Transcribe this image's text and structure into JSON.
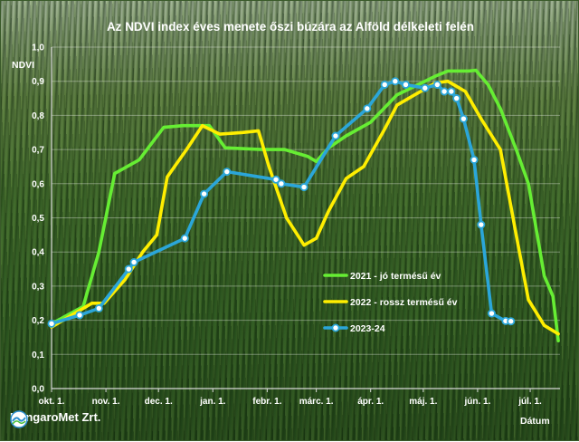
{
  "chart_data": {
    "type": "line",
    "title": "Az NDVI index éves menete őszi búzára az Alföld délkeleti felén",
    "ylabel": "NDVI",
    "xlabel": "Dátum",
    "ylim": [
      0,
      1
    ],
    "xlim": [
      0,
      290
    ],
    "y_ticks": [
      "0,0",
      "0,1",
      "0,2",
      "0,3",
      "0,4",
      "0,5",
      "0,6",
      "0,7",
      "0,8",
      "0,9",
      "1,0"
    ],
    "x_ticks": [
      {
        "label": "okt. 1.",
        "day": 0
      },
      {
        "label": "nov. 1.",
        "day": 31
      },
      {
        "label": "dec. 1.",
        "day": 61
      },
      {
        "label": "jan. 1.",
        "day": 92
      },
      {
        "label": "febr. 1.",
        "day": 123
      },
      {
        "label": "márc. 1.",
        "day": 151
      },
      {
        "label": "ápr. 1.",
        "day": 182
      },
      {
        "label": "máj. 1.",
        "day": 212
      },
      {
        "label": "jún. 1.",
        "day": 243
      },
      {
        "label": "júl. 1.",
        "day": 273
      }
    ],
    "grid": "horizontal",
    "legend_position": "right",
    "series": [
      {
        "name": "2021 - jó termésű év",
        "color": "#66ee33",
        "markers": false,
        "points": [
          [
            0,
            0.19
          ],
          [
            18,
            0.24
          ],
          [
            27,
            0.4
          ],
          [
            36,
            0.63
          ],
          [
            50,
            0.67
          ],
          [
            64,
            0.765
          ],
          [
            75,
            0.77
          ],
          [
            90,
            0.77
          ],
          [
            99,
            0.705
          ],
          [
            120,
            0.7
          ],
          [
            133,
            0.7
          ],
          [
            146,
            0.68
          ],
          [
            151,
            0.665
          ],
          [
            158,
            0.705
          ],
          [
            168,
            0.74
          ],
          [
            182,
            0.78
          ],
          [
            197,
            0.86
          ],
          [
            207,
            0.885
          ],
          [
            219,
            0.915
          ],
          [
            226,
            0.93
          ],
          [
            238,
            0.93
          ],
          [
            242,
            0.932
          ],
          [
            249,
            0.89
          ],
          [
            256,
            0.82
          ],
          [
            265,
            0.7
          ],
          [
            272,
            0.6
          ],
          [
            281,
            0.33
          ],
          [
            286,
            0.27
          ],
          [
            289,
            0.14
          ]
        ]
      },
      {
        "name": "2022 - rossz termésű év",
        "color": "#ffee00",
        "markers": false,
        "points": [
          [
            0,
            0.18
          ],
          [
            23,
            0.25
          ],
          [
            30,
            0.25
          ],
          [
            42,
            0.32
          ],
          [
            52,
            0.4
          ],
          [
            60,
            0.45
          ],
          [
            66,
            0.62
          ],
          [
            77,
            0.7
          ],
          [
            86,
            0.77
          ],
          [
            96,
            0.745
          ],
          [
            109,
            0.75
          ],
          [
            118,
            0.755
          ],
          [
            124,
            0.65
          ],
          [
            134,
            0.5
          ],
          [
            144,
            0.42
          ],
          [
            151,
            0.44
          ],
          [
            158,
            0.52
          ],
          [
            168,
            0.615
          ],
          [
            178,
            0.65
          ],
          [
            190,
            0.76
          ],
          [
            197,
            0.83
          ],
          [
            207,
            0.86
          ],
          [
            219,
            0.895
          ],
          [
            226,
            0.9
          ],
          [
            236,
            0.87
          ],
          [
            245,
            0.79
          ],
          [
            256,
            0.7
          ],
          [
            265,
            0.45
          ],
          [
            272,
            0.26
          ],
          [
            281,
            0.185
          ],
          [
            289,
            0.16
          ]
        ]
      },
      {
        "name": "2023-24",
        "color": "#2ba6d9",
        "markers": true,
        "points": [
          [
            0,
            0.19
          ],
          [
            16,
            0.215
          ],
          [
            27,
            0.235
          ],
          [
            44,
            0.35
          ],
          [
            47,
            0.37
          ],
          [
            76,
            0.44
          ],
          [
            87,
            0.57
          ],
          [
            100,
            0.635
          ],
          [
            128,
            0.612
          ],
          [
            131,
            0.6
          ],
          [
            144,
            0.59
          ],
          [
            162,
            0.74
          ],
          [
            180,
            0.82
          ],
          [
            190,
            0.89
          ],
          [
            196,
            0.9
          ],
          [
            202,
            0.89
          ],
          [
            213,
            0.88
          ],
          [
            220,
            0.89
          ],
          [
            224,
            0.87
          ],
          [
            228,
            0.87
          ],
          [
            231,
            0.85
          ],
          [
            235,
            0.79
          ],
          [
            241,
            0.67
          ],
          [
            245,
            0.48
          ],
          [
            251,
            0.22
          ],
          [
            259,
            0.198
          ],
          [
            262,
            0.197
          ]
        ]
      }
    ]
  },
  "logo": {
    "text": "HungaroMet Zrt."
  }
}
